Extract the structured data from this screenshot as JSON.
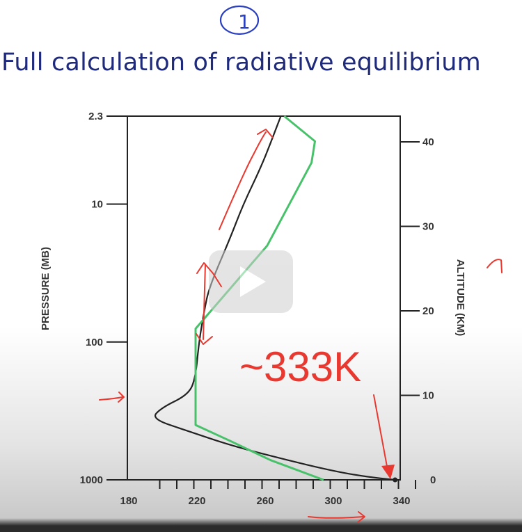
{
  "slide": {
    "title": "Full calculation of radiative equilibrium",
    "handwritten_number": "1"
  },
  "annotations": {
    "big_label": "~333K"
  },
  "player": {
    "play_icon": "play-icon"
  },
  "colors": {
    "title": "#1f2a7a",
    "pen_blue": "#2a3fbf",
    "pen_red": "#e8382f",
    "series_full": "#222222",
    "series_green": "#48c26a"
  },
  "chart_data": {
    "type": "line",
    "xlabel": "",
    "ylabel": "PRESSURE (MB)",
    "y2label": "ALTITUDE (KM)",
    "xlim": [
      180,
      340
    ],
    "xticks": [
      180,
      220,
      260,
      300,
      340
    ],
    "ylim_pressure": [
      1000,
      2.3
    ],
    "yscale": "log",
    "yticks_pressure": [
      "2.3",
      "10",
      "100",
      "1000"
    ],
    "y2ticks_altitude": [
      "0",
      "10",
      "20",
      "30",
      "40"
    ],
    "series": [
      {
        "color": "#222222",
        "points": [
          [
            337,
            1000
          ],
          [
            320,
            950
          ],
          [
            300,
            860
          ],
          [
            270,
            700
          ],
          [
            240,
            560
          ],
          [
            215,
            440
          ],
          [
            194,
            360
          ],
          [
            200,
            300
          ],
          [
            216,
            240
          ],
          [
            220,
            180
          ],
          [
            222,
            100
          ],
          [
            225,
            60
          ],
          [
            228,
            40
          ],
          [
            240,
            18
          ],
          [
            248,
            10
          ],
          [
            258,
            5.5
          ],
          [
            264,
            3.6
          ],
          [
            270,
            2.3
          ]
        ]
      },
      {
        "color": "#48c26a",
        "points": [
          [
            295,
            1000
          ],
          [
            264,
            720
          ],
          [
            240,
            520
          ],
          [
            220,
            400
          ],
          [
            220,
            80
          ],
          [
            262,
            20
          ],
          [
            288,
            5
          ],
          [
            290,
            3.5
          ],
          [
            272,
            2.3
          ]
        ]
      }
    ],
    "grid": false,
    "legend": "none"
  }
}
